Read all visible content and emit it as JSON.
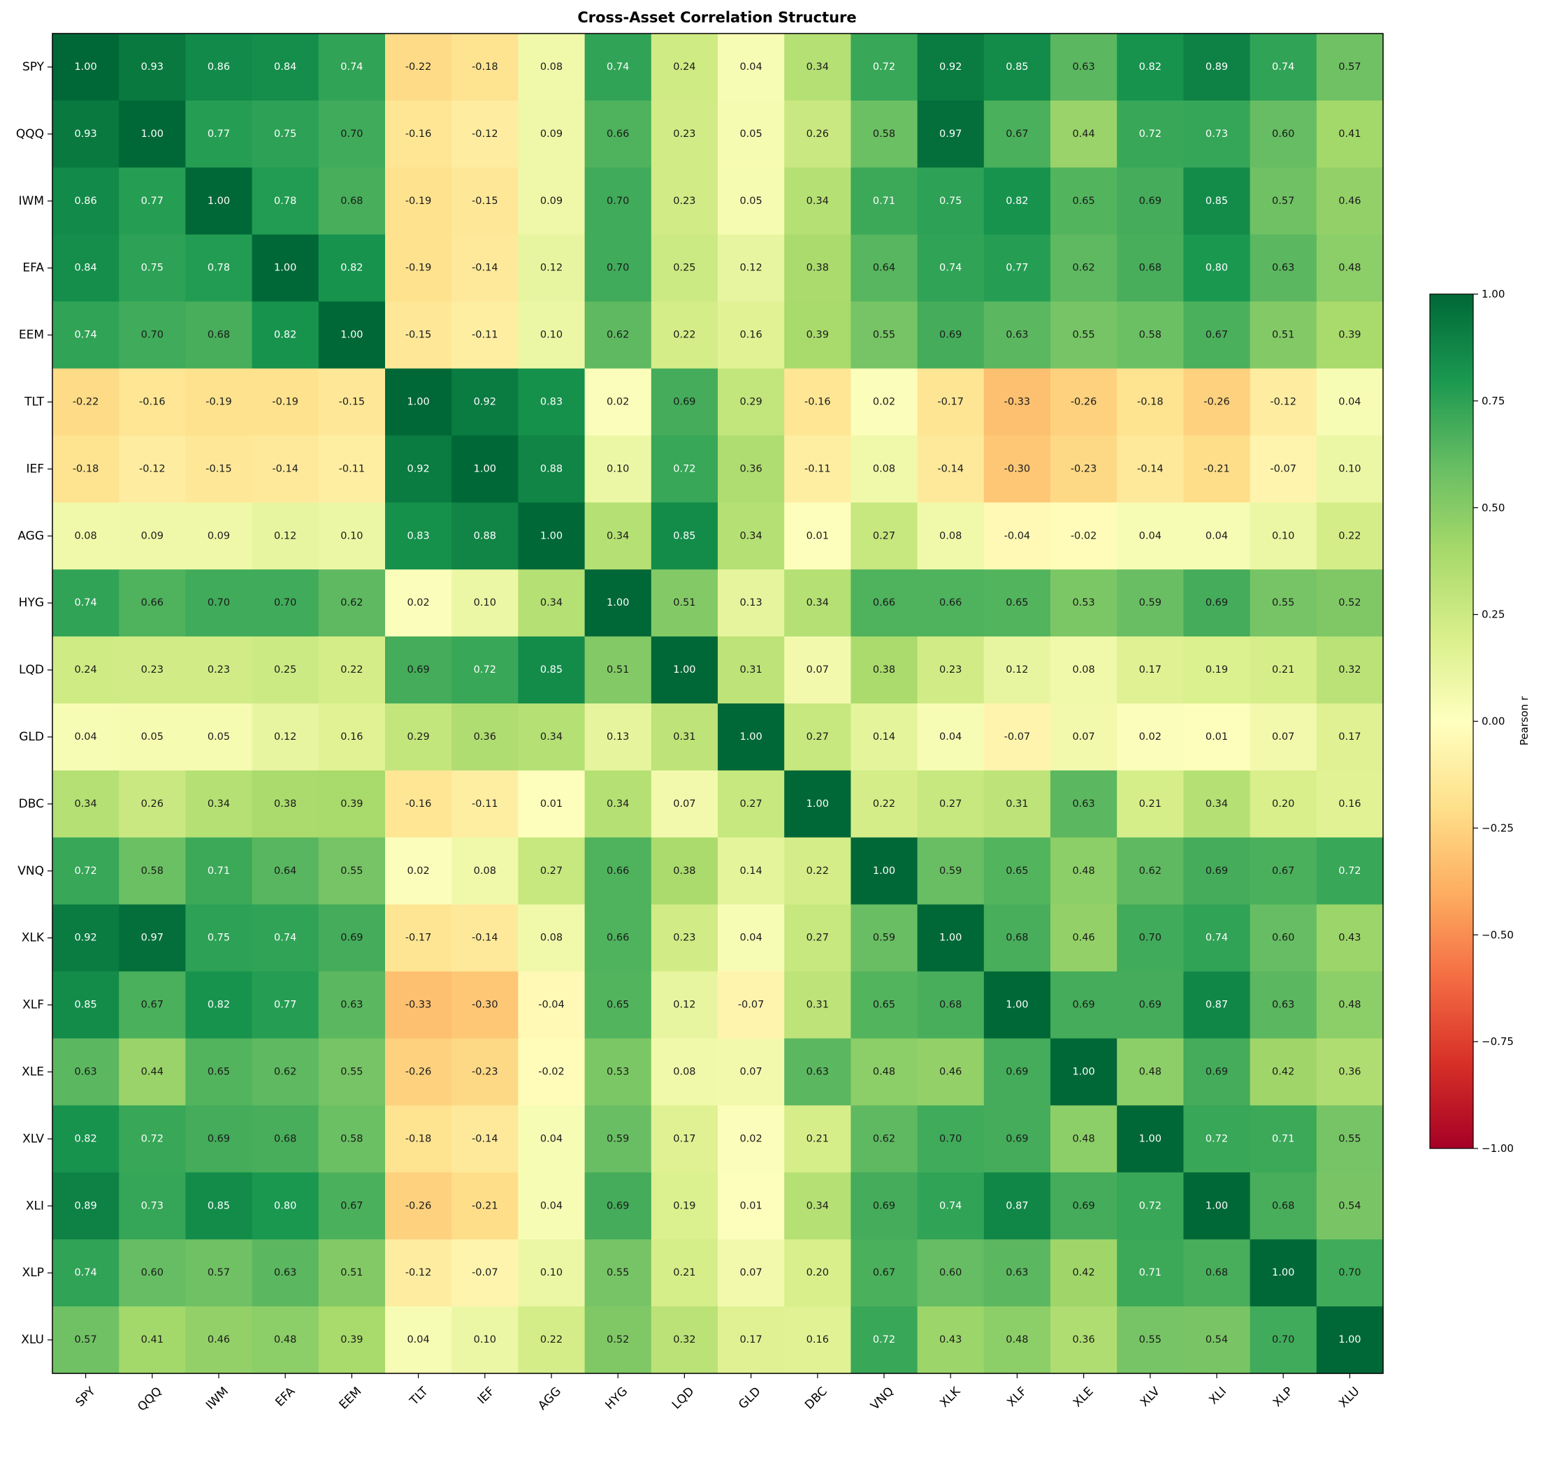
{
  "chart_data": {
    "type": "heatmap",
    "title": "Cross-Asset Correlation Structure",
    "xlabel": "",
    "ylabel": "",
    "colorbar_label": "Pearson r",
    "colormap": "RdYlGn",
    "vmin": -1.0,
    "vmax": 1.0,
    "colorbar_ticks": [
      "1.00",
      "0.75",
      "0.50",
      "0.25",
      "0.00",
      "−0.25",
      "−0.50",
      "−0.75",
      "−1.00"
    ],
    "colorbar_tick_values": [
      1.0,
      0.75,
      0.5,
      0.25,
      0.0,
      -0.25,
      -0.5,
      -0.75,
      -1.0
    ],
    "labels": [
      "SPY",
      "QQQ",
      "IWM",
      "EFA",
      "EEM",
      "TLT",
      "IEF",
      "AGG",
      "HYG",
      "LQD",
      "GLD",
      "DBC",
      "VNQ",
      "XLK",
      "XLF",
      "XLE",
      "XLV",
      "XLI",
      "XLP",
      "XLU"
    ],
    "values": [
      [
        1.0,
        0.93,
        0.86,
        0.84,
        0.74,
        -0.22,
        -0.18,
        0.08,
        0.74,
        0.24,
        0.04,
        0.34,
        0.72,
        0.92,
        0.85,
        0.63,
        0.82,
        0.89,
        0.74,
        0.57
      ],
      [
        0.93,
        1.0,
        0.77,
        0.75,
        0.7,
        -0.16,
        -0.12,
        0.09,
        0.66,
        0.23,
        0.05,
        0.26,
        0.58,
        0.97,
        0.67,
        0.44,
        0.72,
        0.73,
        0.6,
        0.41
      ],
      [
        0.86,
        0.77,
        1.0,
        0.78,
        0.68,
        -0.19,
        -0.15,
        0.09,
        0.7,
        0.23,
        0.05,
        0.34,
        0.71,
        0.75,
        0.82,
        0.65,
        0.69,
        0.85,
        0.57,
        0.46
      ],
      [
        0.84,
        0.75,
        0.78,
        1.0,
        0.82,
        -0.19,
        -0.14,
        0.12,
        0.7,
        0.25,
        0.12,
        0.38,
        0.64,
        0.74,
        0.77,
        0.62,
        0.68,
        0.8,
        0.63,
        0.48
      ],
      [
        0.74,
        0.7,
        0.68,
        0.82,
        1.0,
        -0.15,
        -0.11,
        0.1,
        0.62,
        0.22,
        0.16,
        0.39,
        0.55,
        0.69,
        0.63,
        0.55,
        0.58,
        0.67,
        0.51,
        0.39
      ],
      [
        -0.22,
        -0.16,
        -0.19,
        -0.19,
        -0.15,
        1.0,
        0.92,
        0.83,
        0.02,
        0.69,
        0.29,
        -0.16,
        0.02,
        -0.17,
        -0.33,
        -0.26,
        -0.18,
        -0.26,
        -0.12,
        0.04
      ],
      [
        -0.18,
        -0.12,
        -0.15,
        -0.14,
        -0.11,
        0.92,
        1.0,
        0.88,
        0.1,
        0.72,
        0.36,
        -0.11,
        0.08,
        -0.14,
        -0.3,
        -0.23,
        -0.14,
        -0.21,
        -0.07,
        0.1
      ],
      [
        0.08,
        0.09,
        0.09,
        0.12,
        0.1,
        0.83,
        0.88,
        1.0,
        0.34,
        0.85,
        0.34,
        0.01,
        0.27,
        0.08,
        -0.04,
        -0.02,
        0.04,
        0.04,
        0.1,
        0.22
      ],
      [
        0.74,
        0.66,
        0.7,
        0.7,
        0.62,
        0.02,
        0.1,
        0.34,
        1.0,
        0.51,
        0.13,
        0.34,
        0.66,
        0.66,
        0.65,
        0.53,
        0.59,
        0.69,
        0.55,
        0.52
      ],
      [
        0.24,
        0.23,
        0.23,
        0.25,
        0.22,
        0.69,
        0.72,
        0.85,
        0.51,
        1.0,
        0.31,
        0.07,
        0.38,
        0.23,
        0.12,
        0.08,
        0.17,
        0.19,
        0.21,
        0.32
      ],
      [
        0.04,
        0.05,
        0.05,
        0.12,
        0.16,
        0.29,
        0.36,
        0.34,
        0.13,
        0.31,
        1.0,
        0.27,
        0.14,
        0.04,
        -0.07,
        0.07,
        0.02,
        0.01,
        0.07,
        0.17
      ],
      [
        0.34,
        0.26,
        0.34,
        0.38,
        0.39,
        -0.16,
        -0.11,
        0.01,
        0.34,
        0.07,
        0.27,
        1.0,
        0.22,
        0.27,
        0.31,
        0.63,
        0.21,
        0.34,
        0.2,
        0.16
      ],
      [
        0.72,
        0.58,
        0.71,
        0.64,
        0.55,
        0.02,
        0.08,
        0.27,
        0.66,
        0.38,
        0.14,
        0.22,
        1.0,
        0.59,
        0.65,
        0.48,
        0.62,
        0.69,
        0.67,
        0.72
      ],
      [
        0.92,
        0.97,
        0.75,
        0.74,
        0.69,
        -0.17,
        -0.14,
        0.08,
        0.66,
        0.23,
        0.04,
        0.27,
        0.59,
        1.0,
        0.68,
        0.46,
        0.7,
        0.74,
        0.6,
        0.43
      ],
      [
        0.85,
        0.67,
        0.82,
        0.77,
        0.63,
        -0.33,
        -0.3,
        -0.04,
        0.65,
        0.12,
        -0.07,
        0.31,
        0.65,
        0.68,
        1.0,
        0.69,
        0.69,
        0.87,
        0.63,
        0.48
      ],
      [
        0.63,
        0.44,
        0.65,
        0.62,
        0.55,
        -0.26,
        -0.23,
        -0.02,
        0.53,
        0.08,
        0.07,
        0.63,
        0.48,
        0.46,
        0.69,
        1.0,
        0.48,
        0.69,
        0.42,
        0.36
      ],
      [
        0.82,
        0.72,
        0.69,
        0.68,
        0.58,
        -0.18,
        -0.14,
        0.04,
        0.59,
        0.17,
        0.02,
        0.21,
        0.62,
        0.7,
        0.69,
        0.48,
        1.0,
        0.72,
        0.71,
        0.55
      ],
      [
        0.89,
        0.73,
        0.85,
        0.8,
        0.67,
        -0.26,
        -0.21,
        0.04,
        0.69,
        0.19,
        0.01,
        0.34,
        0.69,
        0.74,
        0.87,
        0.69,
        0.72,
        1.0,
        0.68,
        0.54
      ],
      [
        0.74,
        0.6,
        0.57,
        0.63,
        0.51,
        -0.12,
        -0.07,
        0.1,
        0.55,
        0.21,
        0.07,
        0.2,
        0.67,
        0.6,
        0.63,
        0.42,
        0.71,
        0.68,
        1.0,
        0.7
      ],
      [
        0.57,
        0.41,
        0.46,
        0.48,
        0.39,
        0.04,
        0.1,
        0.22,
        0.52,
        0.32,
        0.17,
        0.16,
        0.72,
        0.43,
        0.48,
        0.36,
        0.55,
        0.54,
        0.7,
        1.0
      ]
    ]
  }
}
